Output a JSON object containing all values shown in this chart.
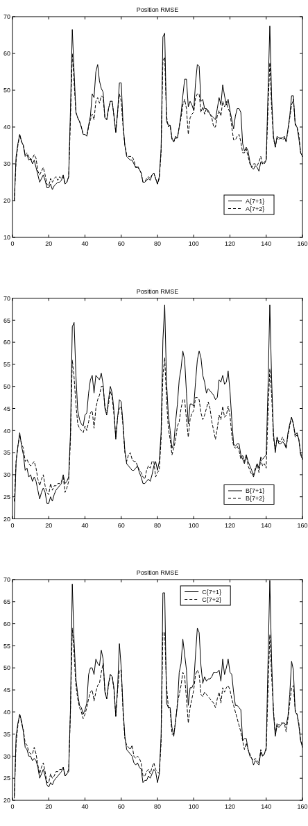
{
  "chart_data": [
    {
      "type": "line",
      "title": "Position RMSE",
      "xlim": [
        0,
        160
      ],
      "xticks": [
        0,
        20,
        40,
        60,
        80,
        100,
        120,
        140,
        160
      ],
      "ylim": [
        10,
        70
      ],
      "yticks": [
        10,
        20,
        30,
        40,
        50,
        60,
        70
      ],
      "legend": "bottom right",
      "x": [
        1,
        2,
        3,
        4,
        5,
        6,
        7,
        8,
        9,
        10,
        11,
        12,
        13,
        14,
        15,
        16,
        17,
        18,
        19,
        20,
        21,
        22,
        23,
        24,
        25,
        26,
        27,
        28,
        29,
        30,
        31,
        32,
        33,
        34,
        35,
        36,
        37,
        38,
        39,
        40,
        41,
        42,
        43,
        44,
        45,
        46,
        47,
        48,
        49,
        50,
        51,
        52,
        53,
        54,
        55,
        56,
        57,
        58,
        59,
        60,
        61,
        62,
        63,
        64,
        65,
        66,
        67,
        68,
        69,
        70,
        71,
        72,
        73,
        74,
        75,
        76,
        77,
        78,
        79,
        80,
        81,
        82,
        83,
        84,
        85,
        86,
        87,
        88,
        89,
        90,
        91,
        92,
        93,
        94,
        95,
        96,
        97,
        98,
        99,
        100,
        101,
        102,
        103,
        104,
        105,
        106,
        107,
        108,
        109,
        110,
        111,
        112,
        113,
        114,
        115,
        116,
        117,
        118,
        119,
        120,
        121,
        122,
        123,
        124,
        125,
        126,
        127,
        128,
        129,
        130,
        131,
        132,
        133,
        134,
        135,
        136,
        137,
        138,
        139,
        140,
        141,
        142,
        143,
        144,
        145,
        146,
        147,
        148,
        149,
        150,
        151,
        152,
        153,
        154,
        155,
        156,
        157,
        158,
        159,
        160
      ],
      "series": [
        {
          "name": "A{7+1}",
          "color": "#000000",
          "line_style": "solid",
          "values": [
            20,
            32,
            35.5,
            38,
            36,
            35,
            32,
            32.5,
            31,
            31.5,
            30,
            31,
            29,
            27,
            25,
            26,
            27,
            25.5,
            23.5,
            23.5,
            24.5,
            23,
            24,
            24.5,
            25,
            25,
            25.5,
            27,
            24.5,
            25,
            26.5,
            45,
            66.5,
            55,
            44,
            42.5,
            41.5,
            40,
            38,
            38,
            37.5,
            40.5,
            43,
            49,
            48,
            55,
            57,
            52.5,
            50.5,
            49.5,
            42.5,
            42,
            45,
            47,
            47,
            43,
            38.5,
            44,
            52,
            52,
            41,
            35,
            32,
            31.5,
            31,
            31,
            30,
            29,
            29,
            28.5,
            27.5,
            25,
            25,
            25.5,
            26,
            25.5,
            27,
            27.5,
            26,
            24.5,
            26.5,
            34,
            64.5,
            65.5,
            41.5,
            40.5,
            40.5,
            37,
            36,
            37.5,
            37,
            40,
            43.5,
            48.5,
            53,
            53,
            45.5,
            47,
            46,
            44.5,
            52,
            57,
            56.5,
            47,
            47.5,
            45,
            45,
            44.5,
            43.5,
            43,
            42.5,
            42,
            45,
            48,
            46,
            51.5,
            48.5,
            46,
            47.5,
            44.5,
            42,
            39.5,
            43,
            45,
            45,
            44,
            35.5,
            33.5,
            34.5,
            33.5,
            30.5,
            29,
            28.5,
            29.5,
            29,
            28,
            30.5,
            30,
            30.5,
            31,
            49.5,
            67.5,
            48,
            37.5,
            34.5,
            37.5,
            37,
            37,
            37,
            37.5,
            36,
            39.5,
            43,
            48.5,
            48.5,
            40.5,
            40,
            37,
            33,
            32
          ]
        },
        {
          "name": "A{7+2}",
          "color": "#000000",
          "line_style": "dashed",
          "values": [
            20,
            31,
            35,
            38,
            36,
            35,
            32.5,
            33,
            32,
            31,
            31.5,
            32.5,
            31.5,
            28,
            27,
            28,
            29,
            27,
            24.5,
            24,
            26,
            25,
            26,
            26.5,
            25.5,
            26.5,
            26,
            26.5,
            24.5,
            25,
            26.5,
            42,
            60,
            52,
            44,
            42.5,
            41.5,
            40,
            38,
            38,
            37.5,
            40,
            42,
            43.5,
            42,
            47,
            48,
            46.5,
            48.5,
            48,
            42.5,
            42,
            45,
            47,
            47,
            43,
            38.5,
            44,
            49,
            47,
            40,
            35,
            32.5,
            32,
            32,
            32,
            31,
            29,
            29.5,
            28.5,
            27.5,
            25,
            25,
            26,
            26.5,
            26,
            27,
            27.5,
            26,
            24.5,
            26,
            33,
            58,
            59,
            43,
            40,
            40.5,
            36.5,
            36,
            37,
            37,
            40,
            42.5,
            46,
            47.5,
            45,
            38,
            42.5,
            43.5,
            44,
            48,
            49,
            49,
            44,
            45.5,
            43.5,
            45,
            44,
            43.5,
            42.5,
            40,
            40,
            43,
            44.5,
            43,
            47,
            45.5,
            47,
            45,
            44,
            40,
            36.5,
            36.5,
            37.5,
            38,
            36,
            33,
            33,
            34,
            32,
            30,
            29,
            30,
            30,
            29.5,
            30.5,
            32,
            30,
            30,
            31,
            45,
            57.5,
            45,
            37,
            34.5,
            37,
            36.5,
            37,
            36.5,
            37,
            36,
            39,
            42.5,
            46,
            47.5,
            41,
            40,
            38,
            33,
            32
          ]
        }
      ]
    },
    {
      "type": "line",
      "title": "Position RMSE",
      "xlim": [
        0,
        160
      ],
      "xticks": [
        0,
        20,
        40,
        60,
        80,
        100,
        120,
        140,
        160
      ],
      "ylim": [
        20,
        70
      ],
      "yticks": [
        20,
        25,
        30,
        35,
        40,
        45,
        50,
        55,
        60,
        65,
        70
      ],
      "legend": "bottom right",
      "x": [
        1,
        2,
        3,
        4,
        5,
        6,
        7,
        8,
        9,
        10,
        11,
        12,
        13,
        14,
        15,
        16,
        17,
        18,
        19,
        20,
        21,
        22,
        23,
        24,
        25,
        26,
        27,
        28,
        29,
        30,
        31,
        32,
        33,
        34,
        35,
        36,
        37,
        38,
        39,
        40,
        41,
        42,
        43,
        44,
        45,
        46,
        47,
        48,
        49,
        50,
        51,
        52,
        53,
        54,
        55,
        56,
        57,
        58,
        59,
        60,
        61,
        62,
        63,
        64,
        65,
        66,
        67,
        68,
        69,
        70,
        71,
        72,
        73,
        74,
        75,
        76,
        77,
        78,
        79,
        80,
        81,
        82,
        83,
        84,
        85,
        86,
        87,
        88,
        89,
        90,
        91,
        92,
        93,
        94,
        95,
        96,
        97,
        98,
        99,
        100,
        101,
        102,
        103,
        104,
        105,
        106,
        107,
        108,
        109,
        110,
        111,
        112,
        113,
        114,
        115,
        116,
        117,
        118,
        119,
        120,
        121,
        122,
        123,
        124,
        125,
        126,
        127,
        128,
        129,
        130,
        131,
        132,
        133,
        134,
        135,
        136,
        137,
        138,
        139,
        140,
        141,
        142,
        143,
        144,
        145,
        146,
        147,
        148,
        149,
        150,
        151,
        152,
        153,
        154,
        155,
        156,
        157,
        158,
        159,
        160
      ],
      "series": [
        {
          "name": "B{7+1}",
          "color": "#000000",
          "line_style": "solid",
          "values": [
            20,
            33,
            36.5,
            39.5,
            36.5,
            34.5,
            31,
            31.5,
            29.5,
            30,
            28.5,
            29.5,
            28.5,
            26.5,
            24.5,
            26,
            27,
            26,
            23.5,
            23.5,
            25,
            24,
            25.5,
            26.5,
            27,
            27.5,
            28,
            30,
            28,
            28.5,
            29.5,
            39.5,
            63.5,
            64.5,
            52.5,
            44.5,
            42.5,
            41.5,
            41,
            43.5,
            44,
            48.5,
            51.5,
            52.5,
            48.5,
            52.5,
            52,
            51.5,
            53,
            50.5,
            45,
            43.5,
            47,
            50,
            48.5,
            44.5,
            38,
            43,
            47,
            46.5,
            41.5,
            35.5,
            32.5,
            32,
            31.5,
            31,
            31,
            31.5,
            32,
            30.5,
            29.5,
            28,
            28,
            28.5,
            29,
            28.5,
            30,
            32,
            33,
            31,
            33,
            39.5,
            60.5,
            68.5,
            51,
            43.5,
            40,
            36,
            37,
            42,
            46,
            51.5,
            54,
            58,
            56,
            48.5,
            41.5,
            46,
            46,
            45.5,
            51,
            56,
            58,
            56.5,
            52.5,
            51,
            48.5,
            49.5,
            49,
            48.5,
            48,
            47,
            47.5,
            51.5,
            51,
            52.5,
            50.5,
            51,
            53.5,
            49,
            42.5,
            37,
            36.5,
            37,
            37,
            34.5,
            33.5,
            32.5,
            34.5,
            33,
            32,
            31,
            29.5,
            31,
            32.5,
            31.5,
            34,
            33.5,
            34,
            34.5,
            50,
            68.5,
            51.5,
            39.5,
            35,
            38.5,
            37,
            37,
            37.5,
            37,
            36,
            39.5,
            41.5,
            43,
            41.5,
            39,
            39.5,
            38,
            34.5,
            33.5
          ]
        },
        {
          "name": "B{7+2}",
          "color": "#000000",
          "line_style": "dashed",
          "values": [
            24,
            33,
            36.5,
            39,
            37,
            36,
            33,
            33.5,
            32.5,
            32,
            32.5,
            33,
            31.5,
            29,
            27.5,
            29,
            30,
            27.5,
            26,
            25.5,
            28,
            26.5,
            27.5,
            27.5,
            28,
            28,
            28.5,
            29.5,
            26,
            27,
            28.5,
            38,
            56,
            52,
            46,
            41.5,
            40.5,
            40,
            39.5,
            41,
            40,
            42,
            44,
            44.5,
            40.5,
            45,
            47,
            48,
            50,
            50,
            45.5,
            44,
            46,
            49,
            47.5,
            43.5,
            38.5,
            43,
            45,
            45.5,
            41,
            35,
            33,
            34.5,
            35,
            33.5,
            33,
            33,
            32,
            31,
            30.5,
            29.5,
            29,
            31,
            32,
            31.5,
            33,
            33,
            29.5,
            30.5,
            31,
            38,
            52.5,
            56.5,
            47,
            40.5,
            38,
            34.5,
            36,
            38,
            41,
            42,
            45,
            47,
            47,
            42.5,
            38.5,
            42.5,
            44,
            44.5,
            47.5,
            47.5,
            47,
            44,
            42.5,
            43.5,
            45,
            46.5,
            45,
            42,
            40,
            38,
            40.5,
            43.5,
            42.5,
            45.5,
            43,
            43.5,
            45.5,
            43.5,
            39,
            36.5,
            36,
            36.5,
            35.5,
            33.5,
            34.5,
            33,
            34.5,
            32,
            31,
            30,
            30,
            31.5,
            32.5,
            30.5,
            33.5,
            32,
            32.5,
            31.5,
            44,
            54,
            48,
            38.5,
            35.5,
            38.5,
            37.5,
            37.5,
            38.5,
            37.5,
            36,
            39,
            41,
            43,
            41.5,
            38.5,
            39,
            38,
            35,
            33.5
          ]
        }
      ]
    },
    {
      "type": "line",
      "title": "Position RMSE",
      "xlim": [
        0,
        160
      ],
      "xticks": [
        0,
        20,
        40,
        60,
        80,
        100,
        120,
        140,
        160
      ],
      "ylim": [
        20,
        70
      ],
      "yticks": [
        20,
        25,
        30,
        35,
        40,
        45,
        50,
        55,
        60,
        65,
        70
      ],
      "legend": "top",
      "x": [
        1,
        2,
        3,
        4,
        5,
        6,
        7,
        8,
        9,
        10,
        11,
        12,
        13,
        14,
        15,
        16,
        17,
        18,
        19,
        20,
        21,
        22,
        23,
        24,
        25,
        26,
        27,
        28,
        29,
        30,
        31,
        32,
        33,
        34,
        35,
        36,
        37,
        38,
        39,
        40,
        41,
        42,
        43,
        44,
        45,
        46,
        47,
        48,
        49,
        50,
        51,
        52,
        53,
        54,
        55,
        56,
        57,
        58,
        59,
        60,
        61,
        62,
        63,
        64,
        65,
        66,
        67,
        68,
        69,
        70,
        71,
        72,
        73,
        74,
        75,
        76,
        77,
        78,
        79,
        80,
        81,
        82,
        83,
        84,
        85,
        86,
        87,
        88,
        89,
        90,
        91,
        92,
        93,
        94,
        95,
        96,
        97,
        98,
        99,
        100,
        101,
        102,
        103,
        104,
        105,
        106,
        107,
        108,
        109,
        110,
        111,
        112,
        113,
        114,
        115,
        116,
        117,
        118,
        119,
        120,
        121,
        122,
        123,
        124,
        125,
        126,
        127,
        128,
        129,
        130,
        131,
        132,
        133,
        134,
        135,
        136,
        137,
        138,
        139,
        140,
        141,
        142,
        143,
        144,
        145,
        146,
        147,
        148,
        149,
        150,
        151,
        152,
        153,
        154,
        155,
        156,
        157,
        158,
        159,
        160
      ],
      "series": [
        {
          "name": "C{7+1}",
          "color": "#000000",
          "line_style": "solid",
          "values": [
            20.5,
            34.5,
            37.5,
            39.5,
            38,
            35.5,
            32,
            31.5,
            30,
            30,
            29,
            29.5,
            29,
            27.5,
            25,
            26,
            27,
            25.5,
            23.5,
            23,
            24,
            23.5,
            24.5,
            25,
            25.5,
            26,
            26.5,
            27.5,
            25.5,
            26,
            26.5,
            41,
            69,
            56,
            47.5,
            44,
            41.5,
            41,
            39.5,
            40.5,
            42,
            48.5,
            50,
            50,
            48.5,
            52,
            51,
            50.5,
            54,
            52,
            44.5,
            43,
            46.5,
            48.5,
            48,
            45.5,
            39,
            45.5,
            55.5,
            50,
            41,
            34.5,
            31.5,
            31,
            30.5,
            30,
            28.5,
            28,
            28.5,
            27.5,
            27,
            24,
            24.5,
            24.5,
            25.5,
            25,
            26,
            27,
            26.5,
            24,
            26,
            34.5,
            67,
            67,
            42,
            41,
            41,
            36.5,
            34.5,
            38,
            41.5,
            49,
            51,
            56.5,
            53,
            49.5,
            41.5,
            45.5,
            45.5,
            46.5,
            53,
            59,
            58,
            50.5,
            46.5,
            48,
            47,
            47.5,
            47.5,
            48,
            49,
            49,
            49,
            49.5,
            47,
            52,
            48.5,
            50,
            52,
            49,
            48.5,
            44.5,
            41.5,
            41.5,
            41,
            40.5,
            33.5,
            34,
            34,
            31.5,
            30,
            29.5,
            28,
            29,
            28.5,
            28,
            31,
            30,
            30.5,
            32,
            51.5,
            69.8,
            51.5,
            40,
            34.5,
            37,
            36.5,
            37,
            37.5,
            37.5,
            37,
            39,
            44,
            51.5,
            49.5,
            40,
            39.5,
            37,
            33.5,
            32
          ]
        },
        {
          "name": "C{7+2}",
          "color": "#000000",
          "line_style": "dashed",
          "values": [
            21,
            33,
            37,
            39.5,
            37.5,
            36,
            33,
            32.5,
            31,
            30.5,
            30.5,
            32,
            30.5,
            28,
            26,
            27.5,
            28.5,
            26.5,
            24,
            24,
            26,
            25,
            25.5,
            26.5,
            26.5,
            27,
            27,
            27.5,
            25.5,
            26,
            27,
            40,
            59,
            53,
            46,
            43,
            41,
            40,
            38.5,
            39.5,
            41,
            43,
            44.5,
            45,
            42.5,
            44.5,
            46,
            46.5,
            49,
            51,
            45,
            43,
            46,
            48.5,
            48,
            45,
            39,
            45,
            49.5,
            49.5,
            40,
            34,
            32.5,
            32,
            31.5,
            32.5,
            30,
            29.5,
            30,
            29.5,
            28.5,
            25.5,
            25.5,
            26.5,
            27,
            26,
            27.5,
            28.5,
            27,
            26.5,
            26,
            33,
            58,
            58,
            46,
            41,
            40.5,
            35,
            35,
            38,
            42,
            44,
            46,
            49,
            48,
            43,
            37.5,
            41,
            43,
            45,
            48.5,
            49.5,
            48.5,
            44,
            43.5,
            44.5,
            44,
            43.5,
            43,
            42.5,
            42,
            41,
            43,
            44.5,
            42,
            45.5,
            44.5,
            45.5,
            46,
            45,
            43,
            41.5,
            40,
            38.5,
            37,
            35.5,
            33.5,
            31.5,
            33,
            31.5,
            30.5,
            29.5,
            29,
            29.5,
            29,
            28.5,
            31.5,
            30,
            30.5,
            31.5,
            45,
            57.5,
            48,
            40.5,
            35,
            37.5,
            37,
            37.5,
            37.5,
            37.5,
            35.5,
            38.5,
            42,
            45.5,
            46,
            40.5,
            39.5,
            37.5,
            33.5,
            32.5
          ]
        }
      ]
    }
  ]
}
